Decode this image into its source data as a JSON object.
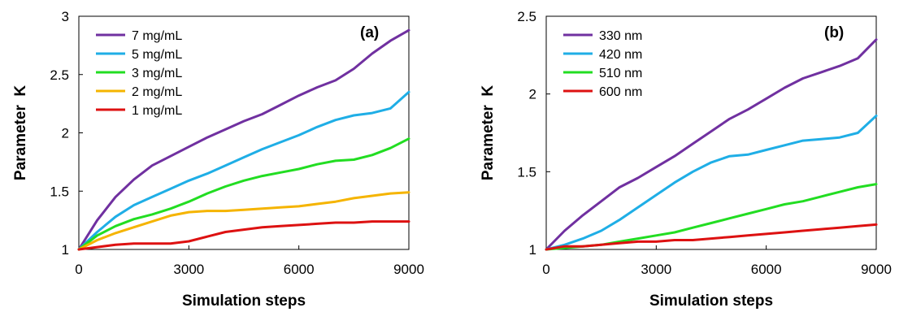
{
  "chart_data": [
    {
      "type": "line",
      "panel_label": "(a)",
      "xlabel": "Simulation steps",
      "ylabel": "Parameter  K",
      "xlim": [
        0,
        9000
      ],
      "ylim": [
        1,
        3
      ],
      "xticks": [
        0,
        3000,
        6000,
        9000
      ],
      "yticks": [
        1,
        1.5,
        2,
        2.5,
        3
      ],
      "grid": false,
      "legend_position": "top-left",
      "series": [
        {
          "name": "7 mg/mL",
          "color": "#7030a0",
          "x": [
            0,
            500,
            1000,
            1500,
            2000,
            2500,
            3000,
            3500,
            4000,
            4500,
            5000,
            5500,
            6000,
            6500,
            7000,
            7500,
            8000,
            8500,
            9000
          ],
          "y": [
            1.0,
            1.25,
            1.45,
            1.6,
            1.72,
            1.8,
            1.88,
            1.96,
            2.03,
            2.1,
            2.16,
            2.24,
            2.32,
            2.39,
            2.45,
            2.55,
            2.68,
            2.79,
            2.88
          ]
        },
        {
          "name": "5 mg/mL",
          "color": "#1faee6",
          "x": [
            0,
            500,
            1000,
            1500,
            2000,
            2500,
            3000,
            3500,
            4000,
            4500,
            5000,
            5500,
            6000,
            6500,
            7000,
            7500,
            8000,
            8500,
            9000
          ],
          "y": [
            1.0,
            1.15,
            1.28,
            1.38,
            1.45,
            1.52,
            1.59,
            1.65,
            1.72,
            1.79,
            1.86,
            1.92,
            1.98,
            2.05,
            2.11,
            2.15,
            2.17,
            2.21,
            2.35
          ]
        },
        {
          "name": "3 mg/mL",
          "color": "#22dd22",
          "x": [
            0,
            500,
            1000,
            1500,
            2000,
            2500,
            3000,
            3500,
            4000,
            4500,
            5000,
            5500,
            6000,
            6500,
            7000,
            7500,
            8000,
            8500,
            9000
          ],
          "y": [
            1.0,
            1.12,
            1.2,
            1.26,
            1.3,
            1.35,
            1.41,
            1.48,
            1.54,
            1.59,
            1.63,
            1.66,
            1.69,
            1.73,
            1.76,
            1.77,
            1.81,
            1.87,
            1.95
          ]
        },
        {
          "name": "2 mg/mL",
          "color": "#f5b400",
          "x": [
            0,
            500,
            1000,
            1500,
            2000,
            2500,
            3000,
            3500,
            4000,
            4500,
            5000,
            5500,
            6000,
            6500,
            7000,
            7500,
            8000,
            8500,
            9000
          ],
          "y": [
            1.0,
            1.08,
            1.14,
            1.19,
            1.24,
            1.29,
            1.32,
            1.33,
            1.33,
            1.34,
            1.35,
            1.36,
            1.37,
            1.39,
            1.41,
            1.44,
            1.46,
            1.48,
            1.49
          ]
        },
        {
          "name": "1 mg/mL",
          "color": "#dd1111",
          "x": [
            0,
            500,
            1000,
            1500,
            2000,
            2500,
            3000,
            3500,
            4000,
            4500,
            5000,
            5500,
            6000,
            6500,
            7000,
            7500,
            8000,
            8500,
            9000
          ],
          "y": [
            1.0,
            1.02,
            1.04,
            1.05,
            1.05,
            1.05,
            1.07,
            1.11,
            1.15,
            1.17,
            1.19,
            1.2,
            1.21,
            1.22,
            1.23,
            1.23,
            1.24,
            1.24,
            1.24
          ]
        }
      ]
    },
    {
      "type": "line",
      "panel_label": "(b)",
      "xlabel": "Simulation steps",
      "ylabel": "Parameter  K",
      "xlim": [
        0,
        9000
      ],
      "ylim": [
        1,
        2.5
      ],
      "xticks": [
        0,
        3000,
        6000,
        9000
      ],
      "yticks": [
        1,
        1.5,
        2,
        2.5
      ],
      "grid": false,
      "legend_position": "top-left",
      "series": [
        {
          "name": "330 nm",
          "color": "#7030a0",
          "x": [
            0,
            500,
            1000,
            1500,
            2000,
            2500,
            3000,
            3500,
            4000,
            4500,
            5000,
            5500,
            6000,
            6500,
            7000,
            7500,
            8000,
            8500,
            9000
          ],
          "y": [
            1.0,
            1.12,
            1.22,
            1.31,
            1.4,
            1.46,
            1.53,
            1.6,
            1.68,
            1.76,
            1.84,
            1.9,
            1.97,
            2.04,
            2.1,
            2.14,
            2.18,
            2.23,
            2.35
          ]
        },
        {
          "name": "420 nm",
          "color": "#1faee6",
          "x": [
            0,
            500,
            1000,
            1500,
            2000,
            2500,
            3000,
            3500,
            4000,
            4500,
            5000,
            5500,
            6000,
            6500,
            7000,
            7500,
            8000,
            8500,
            9000
          ],
          "y": [
            1.0,
            1.03,
            1.07,
            1.12,
            1.19,
            1.27,
            1.35,
            1.43,
            1.5,
            1.56,
            1.6,
            1.61,
            1.64,
            1.67,
            1.7,
            1.71,
            1.72,
            1.75,
            1.86
          ]
        },
        {
          "name": "510 nm",
          "color": "#22dd22",
          "x": [
            0,
            500,
            1000,
            1500,
            2000,
            2500,
            3000,
            3500,
            4000,
            4500,
            5000,
            5500,
            6000,
            6500,
            7000,
            7500,
            8000,
            8500,
            9000
          ],
          "y": [
            1.0,
            1.01,
            1.02,
            1.03,
            1.05,
            1.07,
            1.09,
            1.11,
            1.14,
            1.17,
            1.2,
            1.23,
            1.26,
            1.29,
            1.31,
            1.34,
            1.37,
            1.4,
            1.42
          ]
        },
        {
          "name": "600 nm",
          "color": "#dd1111",
          "x": [
            0,
            500,
            1000,
            1500,
            2000,
            2500,
            3000,
            3500,
            4000,
            4500,
            5000,
            5500,
            6000,
            6500,
            7000,
            7500,
            8000,
            8500,
            9000
          ],
          "y": [
            1.0,
            1.02,
            1.02,
            1.03,
            1.04,
            1.05,
            1.05,
            1.06,
            1.06,
            1.07,
            1.08,
            1.09,
            1.1,
            1.11,
            1.12,
            1.13,
            1.14,
            1.15,
            1.16
          ]
        }
      ]
    }
  ]
}
